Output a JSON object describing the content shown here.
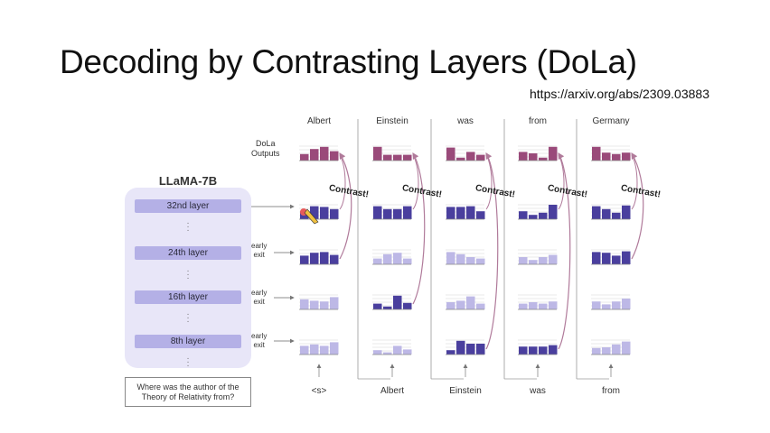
{
  "slide": {
    "title": "Decoding by Contrasting Layers (DoLa)",
    "url": "https://arxiv.org/abs/2309.03883"
  },
  "model": {
    "name": "LLaMA-7B",
    "layers": [
      "32nd layer",
      "24th layer",
      "16th layer",
      "8th layer"
    ],
    "early_exit_label": [
      "early",
      "exit"
    ],
    "prompt": [
      "Where was the author of the",
      "Theory of Relativity from?"
    ]
  },
  "dola_outputs_label": [
    "DoLa",
    "Outputs"
  ],
  "contrast_label": "Contrast!",
  "output_tokens": [
    "Albert",
    "Einstein",
    "was",
    "from",
    "Germany"
  ],
  "input_tokens": [
    "<s>",
    "Albert",
    "Einstein",
    "was",
    "from"
  ],
  "colors": {
    "output_bar": "#9a4a7a",
    "dark_bar": "#4a3f9e",
    "light_bar": "#bdb8e6",
    "arrow": "#b07a9a",
    "panel": "#e8e6f8",
    "layer_box": "#b4b0e6"
  },
  "columns": [
    {
      "output": [
        0.45,
        0.8,
        0.95,
        0.65
      ],
      "layer32": [
        0.55,
        0.9,
        0.85,
        0.7
      ],
      "layer24": [
        0.6,
        0.8,
        0.85,
        0.65
      ],
      "layer16": [
        0.7,
        0.6,
        0.55,
        0.85
      ],
      "layer8": [
        0.6,
        0.7,
        0.6,
        0.85
      ],
      "shade": [
        "dark",
        "dark",
        "light",
        "light"
      ]
    },
    {
      "output": [
        0.95,
        0.4,
        0.4,
        0.4
      ],
      "layer32": [
        0.9,
        0.7,
        0.7,
        0.9
      ],
      "layer24": [
        0.4,
        0.7,
        0.8,
        0.4
      ],
      "layer16": [
        0.4,
        0.2,
        0.95,
        0.45
      ],
      "layer8": [
        0.3,
        0.15,
        0.6,
        0.35
      ],
      "shade": [
        "dark",
        "light",
        "dark",
        "light"
      ]
    },
    {
      "output": [
        0.9,
        0.2,
        0.6,
        0.4
      ],
      "layer32": [
        0.85,
        0.85,
        0.9,
        0.55
      ],
      "layer24": [
        0.85,
        0.7,
        0.5,
        0.4
      ],
      "layer16": [
        0.5,
        0.6,
        0.9,
        0.4
      ],
      "layer8": [
        0.3,
        0.95,
        0.75,
        0.75
      ],
      "shade": [
        "dark",
        "light",
        "light",
        "dark"
      ]
    },
    {
      "output": [
        0.6,
        0.5,
        0.2,
        0.95
      ],
      "layer32": [
        0.55,
        0.3,
        0.45,
        1.0
      ],
      "layer24": [
        0.5,
        0.3,
        0.5,
        0.65
      ],
      "layer16": [
        0.4,
        0.5,
        0.4,
        0.55
      ],
      "layer8": [
        0.55,
        0.55,
        0.55,
        0.65
      ],
      "shade": [
        "dark",
        "light",
        "light",
        "dark"
      ]
    },
    {
      "output": [
        0.95,
        0.55,
        0.45,
        0.55
      ],
      "layer32": [
        0.9,
        0.7,
        0.45,
        0.95
      ],
      "layer24": [
        0.85,
        0.8,
        0.6,
        0.9
      ],
      "layer16": [
        0.55,
        0.35,
        0.55,
        0.75
      ],
      "layer8": [
        0.45,
        0.5,
        0.7,
        0.9
      ],
      "shade": [
        "dark",
        "dark",
        "light",
        "light"
      ]
    }
  ]
}
